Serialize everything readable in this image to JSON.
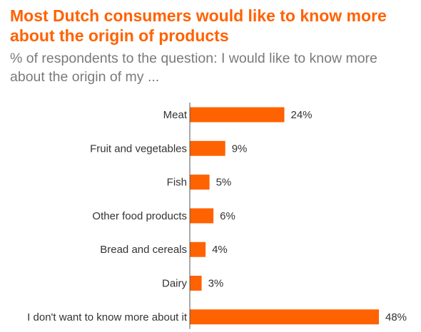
{
  "chart_data": {
    "type": "bar",
    "orientation": "horizontal",
    "title": "Most Dutch consumers would like to know more about the origin of products",
    "subtitle": "% of respondents to the question: I would like to know more about the origin of my ...",
    "categories": [
      "Meat",
      "Fruit and vegetables",
      "Fish",
      "Other food products",
      "Bread and cereals",
      "Dairy",
      "I don't want to know more about it"
    ],
    "values": [
      24,
      9,
      5,
      6,
      4,
      3,
      48
    ],
    "value_labels": [
      "24%",
      "9%",
      "5%",
      "6%",
      "4%",
      "3%",
      "48%"
    ],
    "unit": "%",
    "xlim": [
      0,
      48
    ],
    "grid": false,
    "legend": "none",
    "bar_color": "#ff6200",
    "axis_color": "#555555"
  }
}
